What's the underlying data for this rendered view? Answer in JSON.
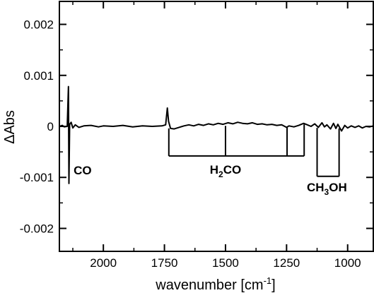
{
  "chart_data": {
    "type": "line",
    "xlabel": "wavenumber [cm",
    "xlabel_sup": "-1",
    "xlabel_end": "]",
    "ylabel": "ΔAbs",
    "xlim": [
      2180,
      895
    ],
    "ylim": [
      -0.00245,
      0.00245
    ],
    "x_axis_reversed": true,
    "xticks": [
      {
        "value": 2000,
        "label": "2000"
      },
      {
        "value": 1750,
        "label": "1750"
      },
      {
        "value": 1500,
        "label": "1500"
      },
      {
        "value": 1250,
        "label": "1250"
      },
      {
        "value": 1000,
        "label": "1000"
      }
    ],
    "yticks": [
      {
        "value": 0.002,
        "label": "0.002"
      },
      {
        "value": 0.001,
        "label": "0.001"
      },
      {
        "value": 0,
        "label": "0"
      },
      {
        "value": -0.001,
        "label": "-0.001"
      },
      {
        "value": -0.002,
        "label": "-0.002"
      }
    ],
    "grid": false,
    "legend": "none",
    "series": [
      {
        "color": "#000000",
        "points": [
          [
            2180,
            0.0
          ],
          [
            2168,
            2e-05
          ],
          [
            2160,
            -1e-05
          ],
          [
            2148,
            0.0
          ],
          [
            2143,
            0.00078
          ],
          [
            2141,
            -0.00112
          ],
          [
            2138,
            4e-05
          ],
          [
            2132,
            8e-05
          ],
          [
            2125,
            -3e-05
          ],
          [
            2115,
            3e-05
          ],
          [
            2100,
            -2e-05
          ],
          [
            2080,
            1e-05
          ],
          [
            2050,
            2e-05
          ],
          [
            2020,
            -1e-05
          ],
          [
            2000,
            1e-05
          ],
          [
            1960,
            0.0
          ],
          [
            1920,
            2e-05
          ],
          [
            1880,
            -1e-05
          ],
          [
            1840,
            1e-05
          ],
          [
            1800,
            0.0
          ],
          [
            1760,
            1e-05
          ],
          [
            1745,
            3e-05
          ],
          [
            1738,
            0.00036
          ],
          [
            1733,
            0.0001
          ],
          [
            1725,
            -4e-05
          ],
          [
            1710,
            -5e-05
          ],
          [
            1690,
            -2e-05
          ],
          [
            1670,
            1e-05
          ],
          [
            1650,
            3e-05
          ],
          [
            1630,
            1e-05
          ],
          [
            1610,
            4e-05
          ],
          [
            1590,
            2e-05
          ],
          [
            1570,
            5e-05
          ],
          [
            1550,
            3e-05
          ],
          [
            1530,
            6e-05
          ],
          [
            1510,
            4e-05
          ],
          [
            1490,
            7e-05
          ],
          [
            1470,
            5e-05
          ],
          [
            1450,
            8e-05
          ],
          [
            1430,
            6e-05
          ],
          [
            1410,
            5e-05
          ],
          [
            1390,
            7e-05
          ],
          [
            1370,
            4e-05
          ],
          [
            1350,
            5e-05
          ],
          [
            1330,
            3e-05
          ],
          [
            1310,
            4e-05
          ],
          [
            1290,
            2e-05
          ],
          [
            1270,
            3e-05
          ],
          [
            1250,
            -2e-05
          ],
          [
            1240,
            1e-05
          ],
          [
            1220,
            -1e-05
          ],
          [
            1200,
            2e-05
          ],
          [
            1180,
            6e-05
          ],
          [
            1165,
            3e-05
          ],
          [
            1150,
            0.0
          ],
          [
            1135,
            5e-05
          ],
          [
            1120,
            -2e-05
          ],
          [
            1105,
            7e-05
          ],
          [
            1095,
            -1e-05
          ],
          [
            1085,
            3e-05
          ],
          [
            1070,
            -5e-05
          ],
          [
            1058,
            6e-05
          ],
          [
            1048,
            -4e-05
          ],
          [
            1040,
            4e-05
          ],
          [
            1025,
            -9e-05
          ],
          [
            1012,
            2e-05
          ],
          [
            1000,
            -3e-05
          ],
          [
            985,
            1e-05
          ],
          [
            970,
            -2e-05
          ],
          [
            955,
            1e-05
          ],
          [
            940,
            -3e-05
          ],
          [
            925,
            0.0
          ],
          [
            910,
            -1e-05
          ],
          [
            895,
            1e-05
          ]
        ]
      }
    ],
    "annotations": [
      {
        "id": "co",
        "text": "CO",
        "x": 2085,
        "y": -0.00094
      },
      {
        "id": "h2co",
        "base": "H",
        "sub": "2",
        "rest": "CO",
        "x": 1500,
        "y": -0.00093
      },
      {
        "id": "ch3oh",
        "base": "CH",
        "sub": "3",
        "rest": "OH",
        "x": 1085,
        "y": -0.00127
      }
    ],
    "brackets": [
      {
        "id": "h2co",
        "baseline": -0.00058,
        "ticks": [
          {
            "x": 1732,
            "top": -4e-05
          },
          {
            "x": 1500,
            "top": 1e-05
          },
          {
            "x": 1248,
            "top": -1e-05
          },
          {
            "x": 1178,
            "top": 4e-05
          }
        ]
      },
      {
        "id": "ch3oh",
        "baseline": -0.00098,
        "ticks": [
          {
            "x": 1125,
            "top": -3e-05
          },
          {
            "x": 1035,
            "top": -4e-05
          }
        ]
      }
    ]
  }
}
